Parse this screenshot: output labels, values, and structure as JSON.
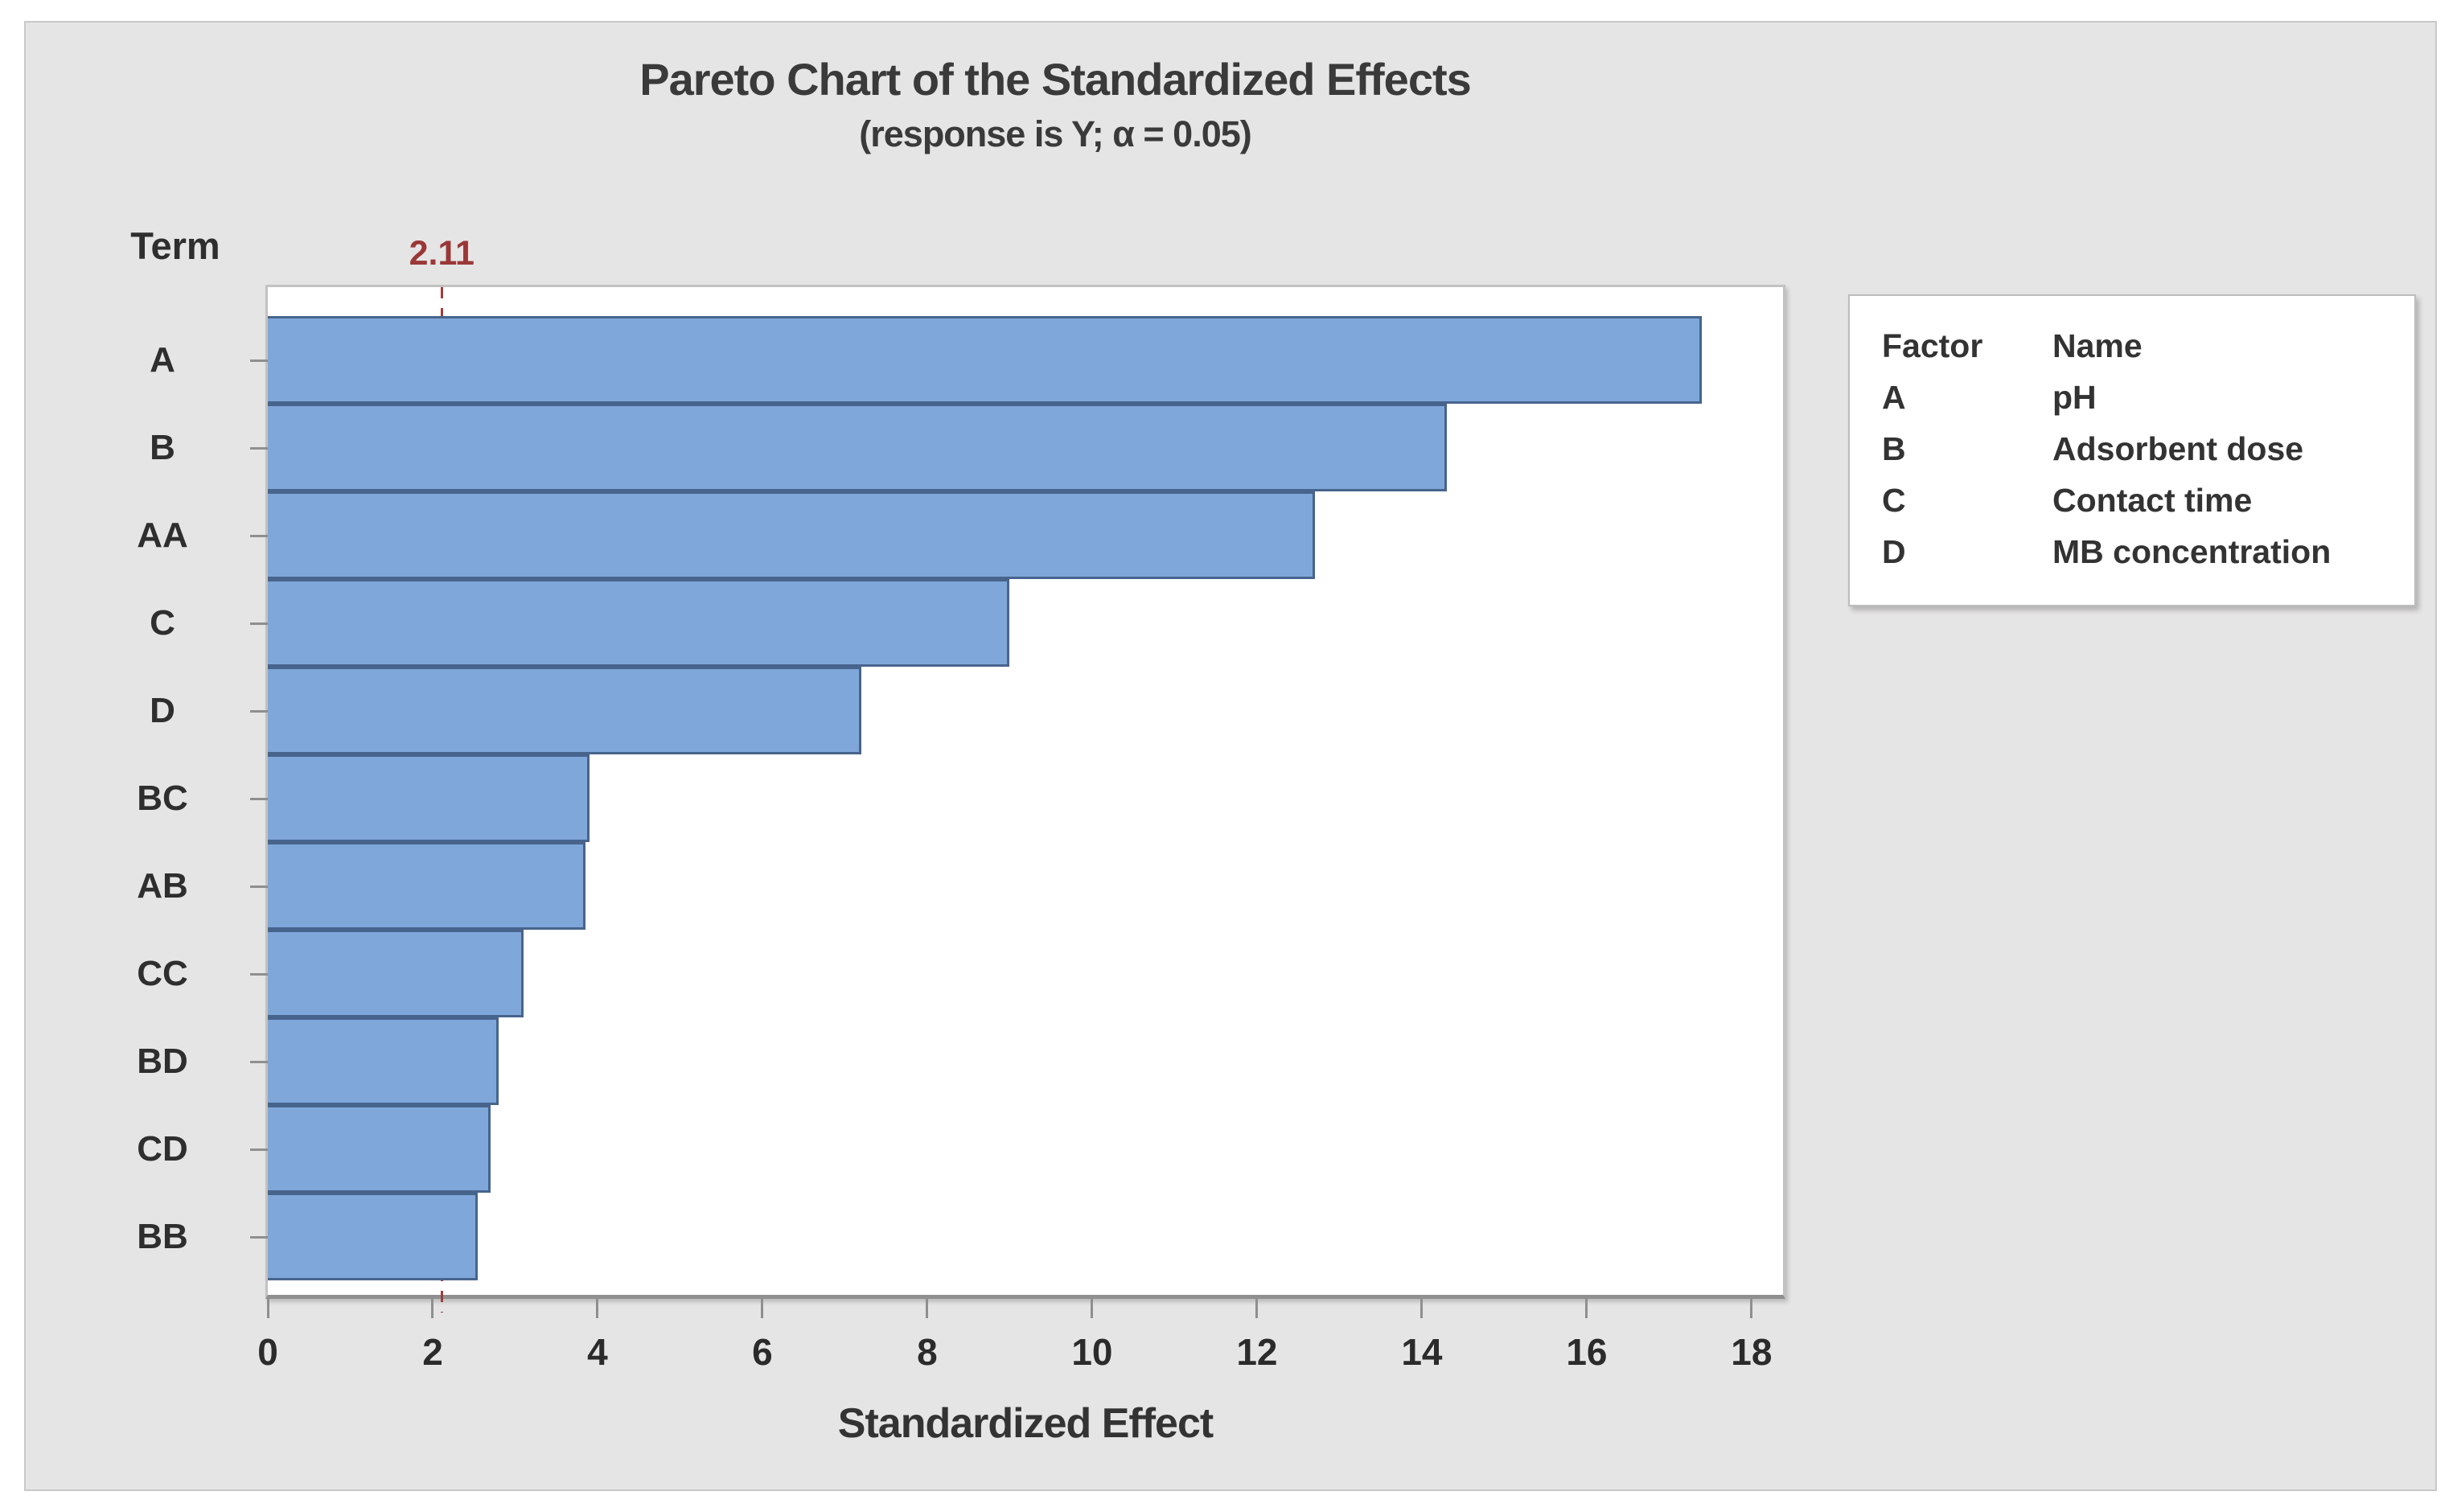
{
  "header": {
    "title": "Pareto Chart of the Standardized Effects",
    "subtitle": "(response is Y; α = 0.05)"
  },
  "axes": {
    "term_axis_label": "Term",
    "x_axis_label": "Standardized Effect"
  },
  "reference": {
    "value": 2.11,
    "label": "2.11"
  },
  "chart_data": {
    "type": "bar",
    "orientation": "horizontal",
    "title": "Pareto Chart of the Standardized Effects",
    "subtitle": "(response is Y; α = 0.05)",
    "xlabel": "Standardized Effect",
    "ylabel": "Term",
    "categories": [
      "A",
      "B",
      "AA",
      "C",
      "D",
      "BC",
      "AB",
      "CC",
      "BD",
      "CD",
      "BB"
    ],
    "values": [
      17.4,
      14.3,
      12.7,
      9.0,
      7.2,
      3.9,
      3.85,
      3.1,
      2.8,
      2.7,
      2.55
    ],
    "x_ticks": [
      0,
      2,
      4,
      6,
      8,
      10,
      12,
      14,
      16,
      18
    ],
    "xlim": [
      0,
      18.44
    ],
    "reference_line": 2.11,
    "reference_label": "2.11",
    "grid": false,
    "legend_position": "right"
  },
  "legend": {
    "headers": [
      "Factor",
      "Name"
    ],
    "rows": [
      [
        "A",
        "pH"
      ],
      [
        "B",
        "Adsorbent dose"
      ],
      [
        "C",
        "Contact time"
      ],
      [
        "D",
        "MB concentration"
      ]
    ]
  },
  "colors": {
    "background": "#e6e5e5",
    "bar_fill": "#7fa7da",
    "bar_border": "#47648c",
    "reference_red": "#9a3838",
    "axis_gray": "#8f8f8f"
  }
}
